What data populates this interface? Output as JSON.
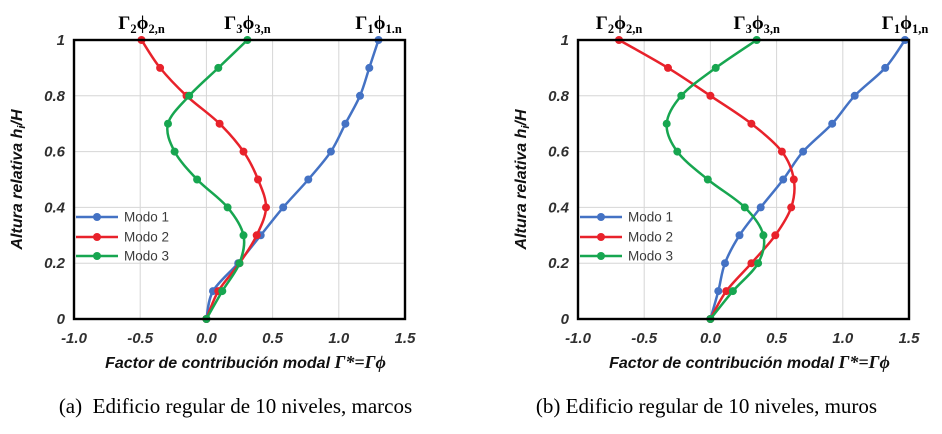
{
  "figure": {
    "background": "#ffffff",
    "grid_color": "#d6d6d6",
    "border_color": "#000000",
    "tick_color": "#303030"
  },
  "chart_data": [
    {
      "type": "line",
      "caption": "(a)  Edificio regular de 10 niveles, marcos",
      "xlabel_text": "Factor de contribución modal ",
      "xlabel_formula": "Γ*=Γϕ",
      "ylabel_text": "Altura relativa h",
      "ylabel_sub": "i",
      "ylabel_tail": "/H",
      "xlim": [
        -1.0,
        1.5
      ],
      "ylim": [
        0,
        1
      ],
      "xticks": [
        "-1.0",
        "-0.5",
        "0.0",
        "0.5",
        "1.0",
        "1.5"
      ],
      "xtick_values": [
        -1.0,
        -0.5,
        0.0,
        0.5,
        1.0,
        1.5
      ],
      "yticks": [
        "1",
        "0.8",
        "0.6",
        "0.4",
        "0.2",
        "0"
      ],
      "ytick_values": [
        1,
        0.8,
        0.6,
        0.4,
        0.2,
        0
      ],
      "grid": true,
      "legend_position": "inside-left",
      "h_values": [
        0,
        0.1,
        0.2,
        0.3,
        0.4,
        0.5,
        0.6,
        0.7,
        0.8,
        0.9,
        1.0
      ],
      "series": [
        {
          "name": "Modo 1",
          "color": "#4472C4",
          "values": [
            0,
            0.05,
            0.24,
            0.41,
            0.58,
            0.77,
            0.94,
            1.05,
            1.16,
            1.23,
            1.3
          ]
        },
        {
          "name": "Modo 2",
          "color": "#E8222B",
          "values": [
            0,
            0.09,
            0.25,
            0.38,
            0.45,
            0.39,
            0.28,
            0.1,
            -0.15,
            -0.35,
            -0.49
          ]
        },
        {
          "name": "Modo 3",
          "color": "#17A650",
          "values": [
            0,
            0.12,
            0.25,
            0.28,
            0.16,
            -0.07,
            -0.24,
            -0.29,
            -0.13,
            0.09,
            0.31
          ]
        }
      ],
      "annotations": [
        {
          "base": "Γ",
          "sub1": "2",
          "phi": "ϕ",
          "sub2": "2,n",
          "x": -0.49
        },
        {
          "base": "Γ",
          "sub1": "3",
          "phi": "ϕ",
          "sub2": "3,n",
          "x": 0.31
        },
        {
          "base": "Γ",
          "sub1": "1",
          "phi": "ϕ",
          "sub2": "1.n",
          "x": 1.3
        }
      ]
    },
    {
      "type": "line",
      "caption": "(b) Edificio regular de 10 niveles, muros",
      "xlabel_text": "Factor de contribución modal ",
      "xlabel_formula": "Γ*=Γϕ",
      "ylabel_text": "Altura relativa h",
      "ylabel_sub": "i",
      "ylabel_tail": "/H",
      "xlim": [
        -1.0,
        1.5
      ],
      "ylim": [
        0,
        1
      ],
      "xticks": [
        "-1.0",
        "-0.5",
        "0.0",
        "0.5",
        "1.0",
        "1.5"
      ],
      "xtick_values": [
        -1.0,
        -0.5,
        0.0,
        0.5,
        1.0,
        1.5
      ],
      "yticks": [
        "1",
        "0.8",
        "0.6",
        "0.4",
        "0.2",
        "0"
      ],
      "ytick_values": [
        1,
        0.8,
        0.6,
        0.4,
        0.2,
        0
      ],
      "grid": true,
      "legend_position": "inside-left",
      "h_values": [
        0,
        0.1,
        0.2,
        0.3,
        0.4,
        0.5,
        0.6,
        0.7,
        0.8,
        0.9,
        1.0
      ],
      "series": [
        {
          "name": "Modo 1",
          "color": "#4472C4",
          "values": [
            0,
            0.06,
            0.11,
            0.22,
            0.38,
            0.55,
            0.7,
            0.92,
            1.09,
            1.32,
            1.47
          ]
        },
        {
          "name": "Modo 2",
          "color": "#E8222B",
          "values": [
            0,
            0.12,
            0.31,
            0.49,
            0.61,
            0.63,
            0.54,
            0.31,
            0.0,
            -0.32,
            -0.69
          ]
        },
        {
          "name": "Modo 3",
          "color": "#17A650",
          "values": [
            0,
            0.17,
            0.36,
            0.4,
            0.26,
            -0.02,
            -0.25,
            -0.33,
            -0.22,
            0.04,
            0.35
          ]
        }
      ],
      "annotations": [
        {
          "base": "Γ",
          "sub1": "2",
          "phi": "ϕ",
          "sub2": "2,n",
          "x": -0.69
        },
        {
          "base": "Γ",
          "sub1": "3",
          "phi": "ϕ",
          "sub2": "3,n",
          "x": 0.35
        },
        {
          "base": "Γ",
          "sub1": "1",
          "phi": "ϕ",
          "sub2": "1,n",
          "x": 1.47
        }
      ]
    }
  ]
}
